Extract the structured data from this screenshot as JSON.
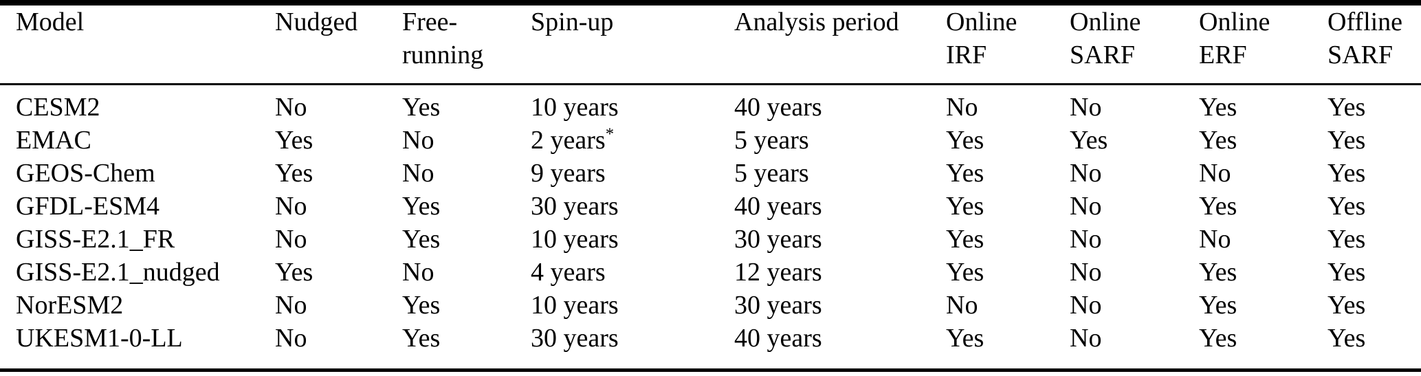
{
  "page": {
    "background_color": "#ffffff",
    "text_color": "#000000",
    "rule_color": "#000000"
  },
  "table": {
    "columns": [
      {
        "id": "model",
        "line1": "Model",
        "line2": ""
      },
      {
        "id": "nudged",
        "line1": "Nudged",
        "line2": ""
      },
      {
        "id": "free_running",
        "line1": "Free-",
        "line2": "running"
      },
      {
        "id": "spin_up",
        "line1": "Spin-up",
        "line2": ""
      },
      {
        "id": "analysis",
        "line1": "Analysis period",
        "line2": ""
      },
      {
        "id": "online_irf",
        "line1": "Online",
        "line2": "IRF"
      },
      {
        "id": "online_sarf",
        "line1": "Online",
        "line2": "SARF"
      },
      {
        "id": "online_erf",
        "line1": "Online",
        "line2": "ERF"
      },
      {
        "id": "offline_sarf",
        "line1": "Offline",
        "line2": "SARF"
      }
    ],
    "rows": [
      {
        "model": "CESM2",
        "nudged": "No",
        "free_running": "Yes",
        "spin_up": "10 years",
        "spin_up_note": "",
        "analysis_period": "40 years",
        "online_irf": "No",
        "online_sarf": "No",
        "online_erf": "Yes",
        "offline_sarf": "Yes"
      },
      {
        "model": "EMAC",
        "nudged": "Yes",
        "free_running": "No",
        "spin_up": "2 years",
        "spin_up_note": "*",
        "analysis_period": "5 years",
        "online_irf": "Yes",
        "online_sarf": "Yes",
        "online_erf": "Yes",
        "offline_sarf": "Yes"
      },
      {
        "model": "GEOS-Chem",
        "nudged": "Yes",
        "free_running": "No",
        "spin_up": "9 years",
        "spin_up_note": "",
        "analysis_period": "5 years",
        "online_irf": "Yes",
        "online_sarf": "No",
        "online_erf": "No",
        "offline_sarf": "Yes"
      },
      {
        "model": "GFDL-ESM4",
        "nudged": "No",
        "free_running": "Yes",
        "spin_up": "30 years",
        "spin_up_note": "",
        "analysis_period": "40 years",
        "online_irf": "Yes",
        "online_sarf": "No",
        "online_erf": "Yes",
        "offline_sarf": "Yes"
      },
      {
        "model": "GISS-E2.1_FR",
        "nudged": "No",
        "free_running": "Yes",
        "spin_up": "10 years",
        "spin_up_note": "",
        "analysis_period": "30 years",
        "online_irf": "Yes",
        "online_sarf": "No",
        "online_erf": "No",
        "offline_sarf": "Yes"
      },
      {
        "model": "GISS-E2.1_nudged",
        "nudged": "Yes",
        "free_running": "No",
        "spin_up": "4 years",
        "spin_up_note": "",
        "analysis_period": "12 years",
        "online_irf": "Yes",
        "online_sarf": "No",
        "online_erf": "Yes",
        "offline_sarf": "Yes"
      },
      {
        "model": "NorESM2",
        "nudged": "No",
        "free_running": "Yes",
        "spin_up": "10 years",
        "spin_up_note": "",
        "analysis_period": "30 years",
        "online_irf": "No",
        "online_sarf": "No",
        "online_erf": "Yes",
        "offline_sarf": "Yes"
      },
      {
        "model": "UKESM1-0-LL",
        "nudged": "No",
        "free_running": "Yes",
        "spin_up": "30 years",
        "spin_up_note": "",
        "analysis_period": "40 years",
        "online_irf": "Yes",
        "online_sarf": "No",
        "online_erf": "Yes",
        "offline_sarf": "Yes"
      }
    ]
  }
}
